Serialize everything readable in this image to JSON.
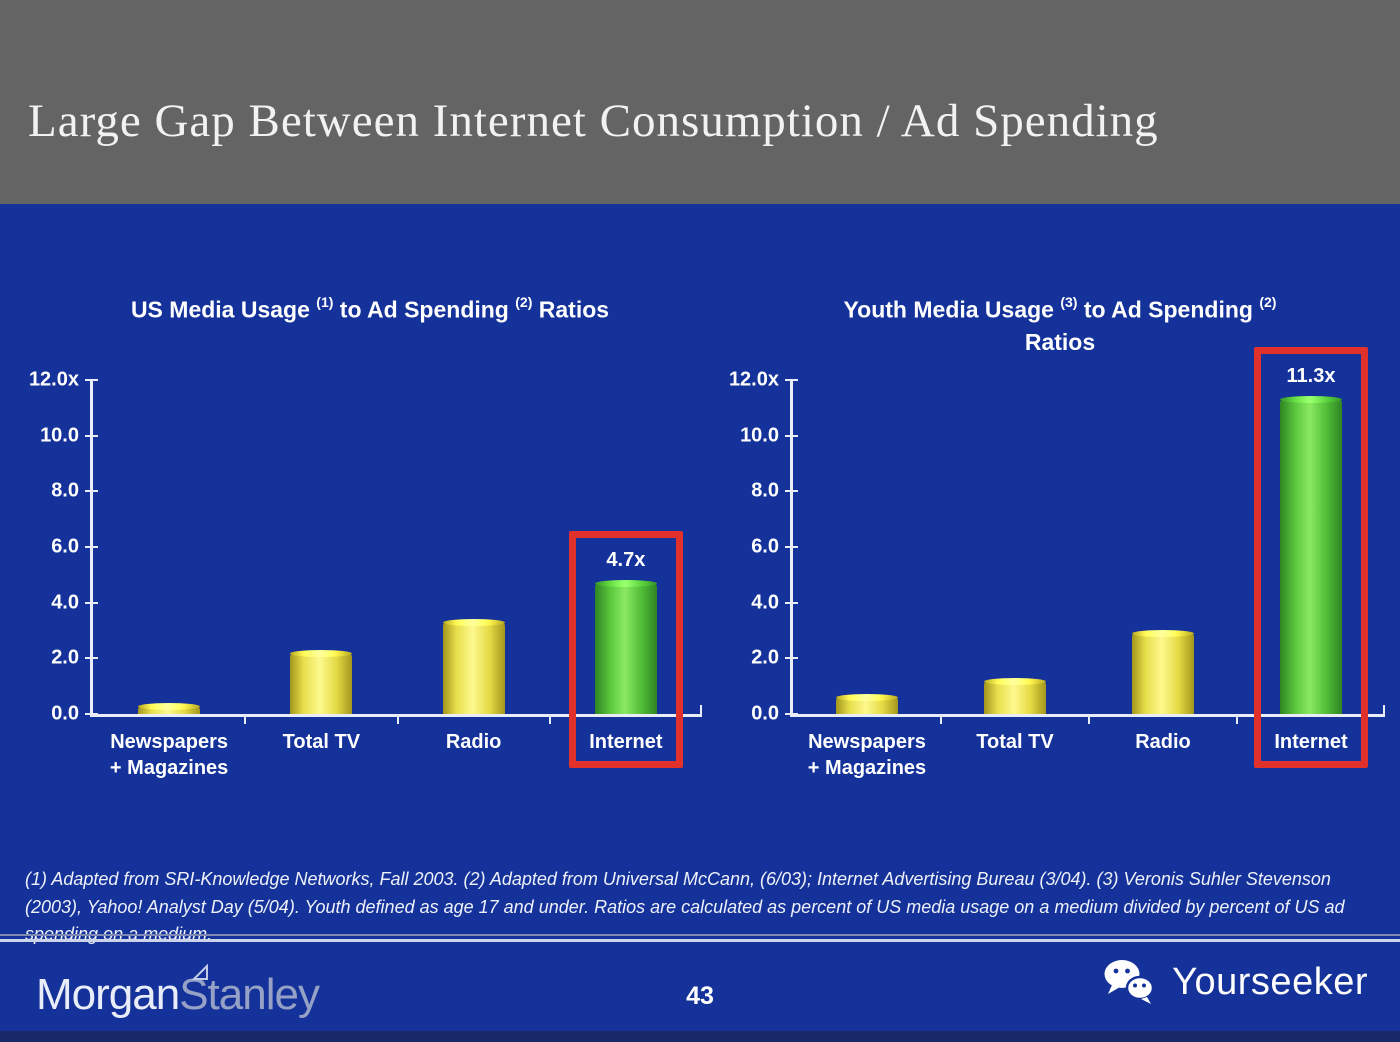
{
  "slide": {
    "title": "Large Gap Between Internet Consumption / Ad Spending",
    "page_number": "43"
  },
  "chart_data": [
    {
      "type": "bar",
      "title": "US Media Usage (1) to Ad Spending (2) Ratios",
      "title_segments": [
        {
          "text": "US Media Usage "
        },
        {
          "text": "(1)",
          "sup": true
        },
        {
          "text": " to Ad Spending "
        },
        {
          "text": "(2)",
          "sup": true
        },
        {
          "text": " Ratios"
        }
      ],
      "categories": [
        "Newspapers + Magazines",
        "Total TV",
        "Radio",
        "Internet"
      ],
      "category_label_lines": [
        [
          "Newspapers",
          "+ Magazines"
        ],
        [
          "Total TV"
        ],
        [
          "Radio"
        ],
        [
          "Internet"
        ]
      ],
      "values": [
        0.3,
        2.2,
        3.3,
        4.7
      ],
      "ylim": [
        0,
        12
      ],
      "ytick_labels": [
        "12.0x",
        "10.0",
        "8.0",
        "6.0",
        "4.0",
        "2.0",
        "0.0"
      ],
      "grid": false,
      "legend": "none",
      "highlight": {
        "index": 3,
        "label": "4.7x"
      }
    },
    {
      "type": "bar",
      "title": "Youth Media Usage (3) to Ad Spending (2) Ratios",
      "title_segments": [
        {
          "text": "Youth Media Usage "
        },
        {
          "text": "(3)",
          "sup": true
        },
        {
          "text": " to Ad Spending "
        },
        {
          "text": "(2)",
          "sup": true
        }
      ],
      "title_line2": "Ratios",
      "categories": [
        "Newspapers + Magazines",
        "Total TV",
        "Radio",
        "Internet"
      ],
      "category_label_lines": [
        [
          "Newspapers",
          "+ Magazines"
        ],
        [
          "Total TV"
        ],
        [
          "Radio"
        ],
        [
          "Internet"
        ]
      ],
      "values": [
        0.6,
        1.2,
        2.9,
        11.3
      ],
      "ylim": [
        0,
        12
      ],
      "ytick_labels": [
        "12.0x",
        "10.0",
        "8.0",
        "6.0",
        "4.0",
        "2.0",
        "0.0"
      ],
      "grid": false,
      "legend": "none",
      "highlight": {
        "index": 3,
        "label": "11.3x"
      }
    }
  ],
  "footnote": "(1) Adapted from SRI-Knowledge Networks, Fall 2003.  (2) Adapted from Universal McCann, (6/03); Internet Advertising Bureau (3/04). (3) Veronis Suhler Stevenson (2003), Yahoo! Analyst Day (5/04).  Youth defined as age 17 and under.  Ratios are calculated as percent of US media usage on a medium divided by percent of US ad spending on a medium.",
  "footer": {
    "brand_word_1": "Morgan",
    "brand_word_2": "Stanley",
    "watermark_text": "Yourseeker"
  },
  "colors": {
    "background": "#14329A",
    "header_band": "#646464",
    "bar_yellow": "#ece34f",
    "bar_green": "#5cc83e",
    "highlight_box_red": "#e0322a",
    "axis": "#e8edf8",
    "text": "#ffffff"
  }
}
